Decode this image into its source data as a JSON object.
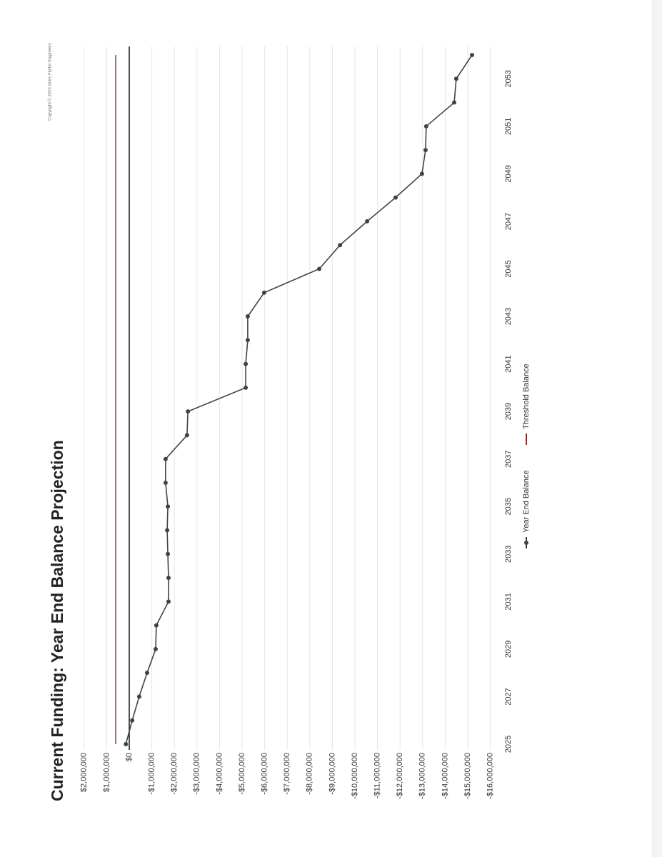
{
  "chart_data": {
    "type": "line",
    "title": "Current Funding: Year End Balance Projection",
    "copyright": "Copyright © 2024 Giles Flythe Engineers",
    "x": [
      2025,
      2026,
      2027,
      2028,
      2029,
      2030,
      2031,
      2032,
      2033,
      2034,
      2035,
      2036,
      2037,
      2038,
      2039,
      2040,
      2041,
      2042,
      2043,
      2044,
      2045,
      2046,
      2047,
      2048,
      2049,
      2050,
      2051,
      2052,
      2053,
      2054
    ],
    "series": [
      {
        "name": "Year End Balance",
        "color": "#3d434a",
        "marker": true,
        "values": [
          150000,
          -130000,
          -440000,
          -790000,
          -1170000,
          -1200000,
          -1740000,
          -1740000,
          -1710000,
          -1680000,
          -1710000,
          -1610000,
          -1610000,
          -2560000,
          -2600000,
          -5160000,
          -5160000,
          -5250000,
          -5250000,
          -5980000,
          -8420000,
          -9340000,
          -10540000,
          -11800000,
          -12970000,
          -13130000,
          -13160000,
          -14400000,
          -14490000,
          -15190000
        ]
      },
      {
        "name": "Threshold Balance",
        "color": "#8b2a2a",
        "marker": false,
        "values": [
          600000,
          600000,
          600000,
          600000,
          600000,
          600000,
          600000,
          600000,
          600000,
          600000,
          600000,
          600000,
          600000,
          600000,
          600000,
          600000,
          600000,
          600000,
          600000,
          600000,
          600000,
          600000,
          600000,
          600000,
          600000,
          600000,
          600000,
          600000,
          600000,
          600000
        ]
      }
    ],
    "xlim": [
      2025,
      2054
    ],
    "xticks": [
      2025,
      2027,
      2029,
      2031,
      2033,
      2035,
      2037,
      2039,
      2041,
      2043,
      2045,
      2047,
      2049,
      2051,
      2053
    ],
    "ylim": [
      -16000000,
      2000000
    ],
    "yticks": [
      {
        "value": 2000000,
        "label": "$2,000,000"
      },
      {
        "value": 1000000,
        "label": "$1,000,000"
      },
      {
        "value": 0,
        "label": "$0"
      },
      {
        "value": -1000000,
        "label": "-$1,000,000"
      },
      {
        "value": -2000000,
        "label": "-$2,000,000"
      },
      {
        "value": -3000000,
        "label": "-$3,000,000"
      },
      {
        "value": -4000000,
        "label": "-$4,000,000"
      },
      {
        "value": -5000000,
        "label": "-$5,000,000"
      },
      {
        "value": -6000000,
        "label": "-$6,000,000"
      },
      {
        "value": -7000000,
        "label": "-$7,000,000"
      },
      {
        "value": -8000000,
        "label": "-$8,000,000"
      },
      {
        "value": -9000000,
        "label": "-$9,000,000"
      },
      {
        "value": -10000000,
        "label": "-$10,000,000"
      },
      {
        "value": -11000000,
        "label": "-$11,000,000"
      },
      {
        "value": -12000000,
        "label": "-$12,000,000"
      },
      {
        "value": -13000000,
        "label": "-$13,000,000"
      },
      {
        "value": -14000000,
        "label": "-$14,000,000"
      },
      {
        "value": -15000000,
        "label": "-$15,000,000"
      },
      {
        "value": -16000000,
        "label": "-$16,000,000"
      }
    ],
    "grid": true,
    "legend": "bottom"
  }
}
